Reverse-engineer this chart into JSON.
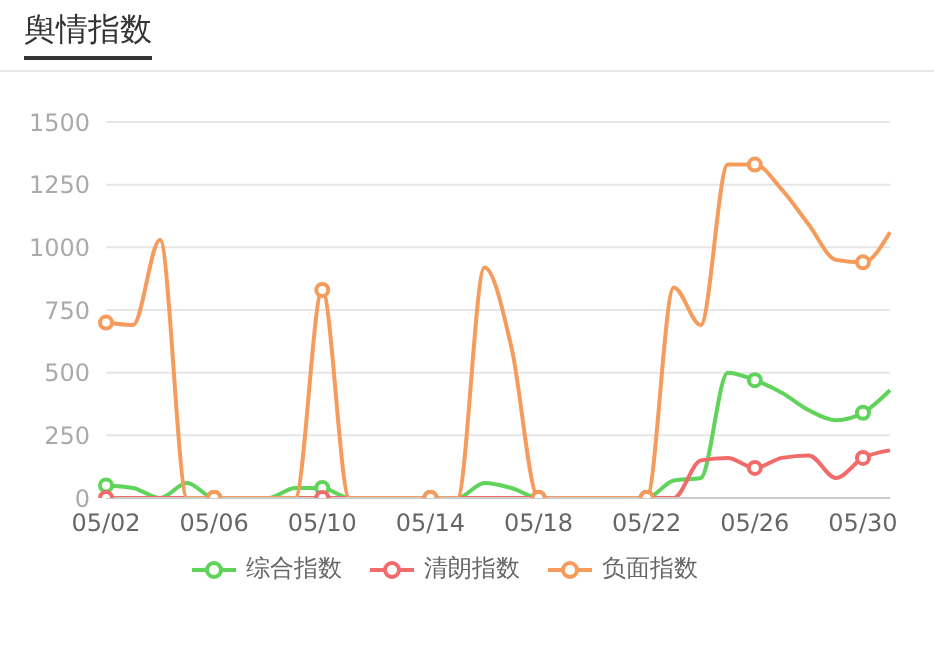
{
  "chart_data": {
    "type": "line",
    "title": "舆情指数",
    "categories": [
      "05/02",
      null,
      null,
      null,
      "05/06",
      null,
      null,
      null,
      "05/10",
      null,
      null,
      null,
      "05/14",
      null,
      null,
      null,
      "05/18",
      null,
      null,
      null,
      "05/22",
      null,
      null,
      null,
      "05/26",
      null,
      null,
      null,
      "05/30",
      null
    ],
    "series": [
      {
        "name": "综合指数",
        "color": "#5fd35a",
        "values": [
          50,
          40,
          0,
          60,
          0,
          0,
          0,
          40,
          40,
          0,
          0,
          0,
          0,
          0,
          60,
          40,
          0,
          0,
          0,
          0,
          0,
          70,
          80,
          500,
          470,
          420,
          350,
          310,
          340,
          430
        ]
      },
      {
        "name": "清朗指数",
        "color": "#f26b6b",
        "values": [
          0,
          0,
          0,
          0,
          0,
          0,
          0,
          0,
          0,
          0,
          0,
          0,
          0,
          0,
          0,
          0,
          0,
          0,
          0,
          0,
          0,
          0,
          150,
          160,
          120,
          160,
          170,
          80,
          160,
          190
        ]
      },
      {
        "name": "负面指数",
        "color": "#f59b5b",
        "values": [
          700,
          690,
          1030,
          0,
          0,
          0,
          0,
          0,
          830,
          0,
          0,
          0,
          0,
          0,
          920,
          600,
          0,
          0,
          0,
          0,
          0,
          840,
          690,
          1330,
          1330,
          1230,
          1090,
          950,
          940,
          1060
        ]
      }
    ],
    "ylim": [
      0,
      1500
    ],
    "yticks": [
      0,
      250,
      500,
      750,
      1000,
      1250,
      1500
    ],
    "grid": "y",
    "legend": "bottom",
    "line_style": "solid"
  }
}
